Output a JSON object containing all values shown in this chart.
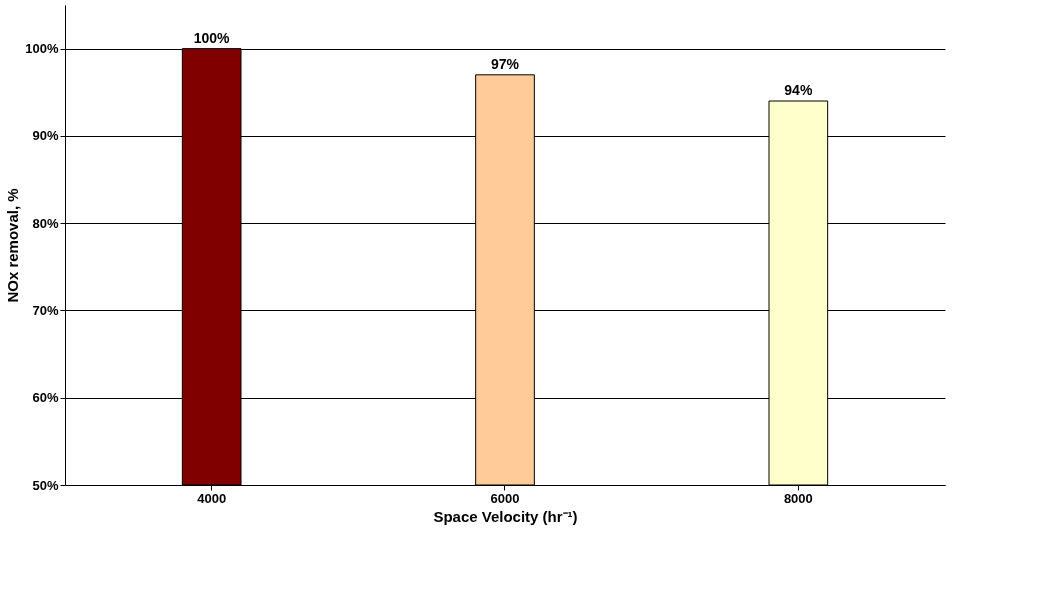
{
  "chart_data": {
    "type": "bar",
    "xlabel": "Space Velocity (hr⁻¹)",
    "ylabel": "NOx removal, %",
    "categories": [
      "4000",
      "6000",
      "8000"
    ],
    "values": [
      100,
      97,
      94
    ],
    "colors": [
      "#800000",
      "#ffcc99",
      "#ffffcc"
    ],
    "value_labels": [
      "100%",
      "97%",
      "94%"
    ],
    "ylim": [
      50,
      105
    ],
    "yticks": [
      {
        "value": 50,
        "label": "50%"
      },
      {
        "value": 60,
        "label": "60%"
      },
      {
        "value": 70,
        "label": "70%"
      },
      {
        "value": 80,
        "label": "80%"
      },
      {
        "value": 90,
        "label": "90%"
      },
      {
        "value": 100,
        "label": "100%"
      }
    ],
    "grid": "y"
  }
}
